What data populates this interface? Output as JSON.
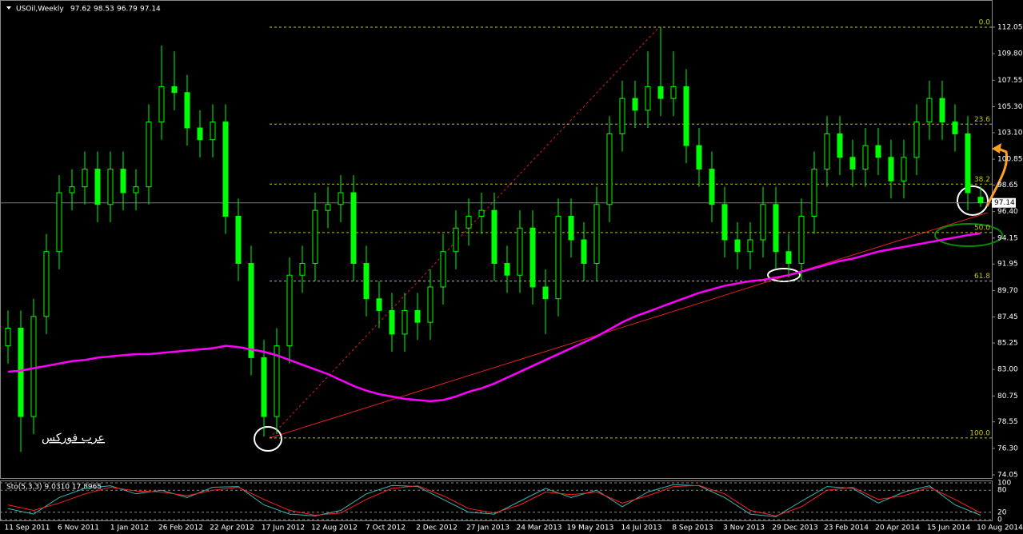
{
  "chart_data": [
    {
      "type": "candlestick",
      "title": "USOil,Weekly",
      "header_values": [
        97.62,
        98.53,
        96.79,
        97.14
      ],
      "categories": [
        "11 Sep 2011",
        null,
        null,
        null,
        "6 Nov 2011",
        null,
        null,
        null,
        "1 Jan 2012",
        null,
        null,
        null,
        "26 Feb 2012",
        null,
        null,
        null,
        "22 Apr 2012",
        null,
        null,
        null,
        "17 Jun 2012",
        null,
        null,
        null,
        "12 Aug 2012",
        null,
        null,
        null,
        "7 Oct 2012",
        null,
        null,
        null,
        "2 Dec 2012",
        null,
        null,
        null,
        "27 Jan 2013",
        null,
        null,
        null,
        "24 Mar 2013",
        null,
        null,
        null,
        "19 May 2013",
        null,
        null,
        null,
        "14 Jul 2013",
        null,
        null,
        null,
        "8 Sep 2013",
        null,
        null,
        null,
        "3 Nov 2013",
        null,
        null,
        null,
        "29 Dec 2013",
        null,
        null,
        null,
        "23 Feb 2014",
        null,
        null,
        null,
        "20 Apr 2014",
        null,
        null,
        null,
        "15 Jun 2014",
        null,
        null,
        null,
        "10 Aug 2014"
      ],
      "open": [
        85,
        86.5,
        79,
        87.5,
        93,
        98,
        98.5,
        100,
        97,
        100,
        98,
        98.5,
        104,
        107,
        106.5,
        103.5,
        102.5,
        104,
        96,
        92,
        84,
        79,
        85,
        91,
        92,
        96.5,
        97,
        98,
        92,
        89,
        88,
        86,
        88,
        87,
        90,
        93,
        95,
        96,
        96.5,
        92,
        91,
        95,
        90,
        89,
        96,
        94,
        92,
        97,
        103,
        106,
        105,
        107,
        106,
        107,
        102,
        100,
        97,
        94,
        93,
        94,
        97,
        93,
        92,
        96,
        100,
        103,
        101,
        100,
        102,
        101,
        99,
        101,
        104,
        106,
        104,
        103,
        97.62
      ],
      "high": [
        88,
        88,
        89,
        94.5,
        99.5,
        100,
        101.5,
        101.5,
        101.5,
        101.5,
        100,
        105.5,
        110.5,
        110,
        108,
        105,
        105.5,
        105.5,
        97.5,
        93.5,
        85.5,
        86.5,
        92.5,
        93.5,
        98,
        98.5,
        99.5,
        99.5,
        93.5,
        90.5,
        89.5,
        89.5,
        89.5,
        91.5,
        94.5,
        96.5,
        97.5,
        98,
        98,
        93.5,
        96.5,
        96.5,
        91.5,
        97.5,
        97.5,
        95.5,
        98.5,
        104.5,
        107.5,
        107.5,
        110,
        112.05,
        110,
        108.5,
        103.5,
        101.5,
        98.5,
        95.5,
        95.5,
        98.5,
        98.5,
        94.5,
        97.5,
        101.5,
        104.5,
        104.5,
        102.5,
        103.5,
        103.5,
        102.5,
        102.5,
        105.5,
        107.5,
        107.5,
        105.5,
        104.5,
        98.53
      ],
      "low": [
        83.5,
        76,
        77.5,
        86,
        91.5,
        96.5,
        97,
        95.5,
        95.5,
        96.5,
        96.5,
        97,
        102.5,
        105,
        102,
        101,
        101,
        94.5,
        90.5,
        82.5,
        77.3,
        77.5,
        83.5,
        89.5,
        90.5,
        95,
        95.5,
        90.5,
        87.5,
        86.5,
        84.5,
        84.5,
        85.5,
        85.5,
        88.5,
        91.5,
        93.5,
        94.5,
        90.5,
        89.5,
        89.5,
        88.5,
        86,
        87.5,
        92.5,
        90.5,
        90.5,
        95.5,
        101.5,
        103.5,
        103.5,
        104.5,
        104.5,
        100.5,
        98.5,
        95.5,
        92.5,
        91.5,
        91.5,
        92.5,
        91.5,
        90.8,
        90.5,
        94.5,
        98.5,
        99.5,
        98.5,
        98.5,
        99.5,
        97.5,
        97.5,
        99.5,
        102.5,
        102.5,
        101.5,
        96.5,
        96.79
      ],
      "close": [
        86.5,
        79,
        87.5,
        93,
        98,
        98.5,
        100,
        97,
        100,
        98,
        98.5,
        104,
        107,
        106.5,
        103.5,
        102.5,
        104,
        96,
        92,
        84,
        79,
        85,
        91,
        92,
        96.5,
        97,
        98,
        92,
        89,
        88,
        86,
        88,
        87,
        90,
        93,
        95,
        96,
        96.5,
        92,
        91,
        95,
        90,
        89,
        96,
        94,
        92,
        97,
        103,
        106,
        105,
        107,
        106,
        107,
        102,
        100,
        97,
        94,
        93,
        94,
        97,
        93,
        92,
        96,
        100,
        103,
        101,
        100,
        102,
        101,
        99,
        101,
        104,
        106,
        104,
        103,
        98,
        97.14
      ],
      "color": "#00ff00",
      "moving_average": {
        "color": "#ff00ff",
        "values": [
          82.8,
          82.9,
          83.1,
          83.3,
          83.5,
          83.7,
          83.8,
          84.0,
          84.1,
          84.2,
          84.3,
          84.3,
          84.4,
          84.5,
          84.6,
          84.7,
          84.8,
          85.0,
          84.9,
          84.7,
          84.5,
          84.2,
          83.8,
          83.4,
          83.0,
          82.6,
          82.1,
          81.6,
          81.2,
          80.9,
          80.7,
          80.5,
          80.4,
          80.3,
          80.4,
          80.7,
          81.1,
          81.4,
          81.8,
          82.3,
          82.8,
          83.3,
          83.8,
          84.3,
          84.8,
          85.3,
          85.8,
          86.4,
          87.0,
          87.5,
          87.9,
          88.3,
          88.7,
          89.1,
          89.5,
          89.8,
          90.1,
          90.3,
          90.5,
          90.6,
          90.8,
          91.0,
          91.3,
          91.6,
          91.9,
          92.2,
          92.4,
          92.7,
          93.0,
          93.2,
          93.4,
          93.6,
          93.8,
          94.0,
          94.2,
          94.4,
          94.55
        ]
      },
      "fibonacci": [
        {
          "value": 112.05,
          "label": "0.0"
        },
        {
          "value": 103.82,
          "label": "23.6"
        },
        {
          "value": 98.73,
          "label": "38.2"
        },
        {
          "value": 94.62,
          "label": "50.0"
        },
        {
          "value": 90.5,
          "label": "61.8"
        },
        {
          "value": 77.18,
          "label": "100.0"
        }
      ],
      "price_line": 97.14,
      "ylim": [
        74.05,
        112.05
      ],
      "yticks": [
        112.05,
        {
          "value": 109.8,
          "label": "109.80"
        },
        107.55,
        {
          "value": 105.3,
          "label": "105.30"
        },
        {
          "value": 103.1,
          "label": "103.10"
        },
        100.85,
        98.65,
        {
          "value": 96.4,
          "label": "96.40"
        },
        94.15,
        91.95,
        {
          "value": 89.7,
          "label": "89.70"
        },
        87.45,
        85.25,
        {
          "value": 83,
          "label": "83.00"
        },
        80.75,
        78.55,
        {
          "value": 76.3,
          "label": "76.30"
        },
        74.05
      ],
      "annotation": "عرب فوركس"
    },
    {
      "type": "line",
      "title": "Sto(5,3,3) 9.0310 17.8965",
      "main": {
        "color": "#3cb4b4",
        "values": [
          30,
          15,
          60,
          85,
          92,
          70,
          80,
          60,
          88,
          90,
          40,
          15,
          10,
          25,
          70,
          93,
          90,
          55,
          20,
          15,
          50,
          85,
          60,
          80,
          35,
          75,
          95,
          92,
          60,
          15,
          8,
          50,
          90,
          85,
          45,
          75,
          92,
          40,
          12
        ]
      },
      "signal": {
        "color": "#ff2020",
        "values": [
          40,
          25,
          45,
          70,
          88,
          78,
          75,
          65,
          80,
          88,
          55,
          25,
          12,
          18,
          55,
          85,
          92,
          65,
          30,
          18,
          40,
          75,
          68,
          75,
          45,
          65,
          90,
          93,
          70,
          25,
          10,
          35,
          80,
          88,
          55,
          65,
          88,
          55,
          18
        ]
      },
      "ylim": [
        0,
        100
      ],
      "yticks": [
        100,
        80,
        20,
        0
      ]
    }
  ]
}
